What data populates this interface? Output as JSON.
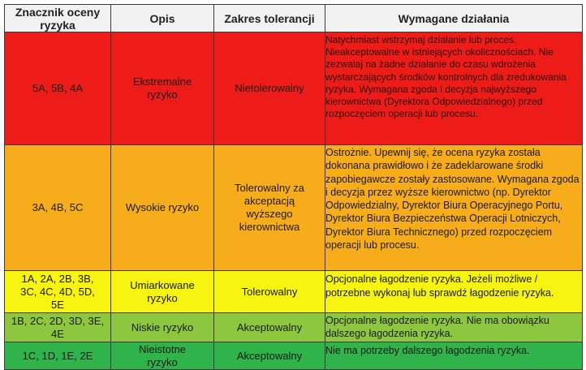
{
  "table": {
    "headers": {
      "rating": "Znacznik oceny ryzyka",
      "description": "Opis",
      "tolerance": "Zakres tolerancji",
      "actions": "Wymagane działania"
    },
    "rows": [
      {
        "id": "extreme",
        "color": "#ee1c18",
        "rating": "5A, 5B, 4A",
        "description": "Ekstremalne ryzyko",
        "tolerance": "Nietolerowalny",
        "actions": "Natychmiast wstrzymaj działanie lub proces. Nieakceptowalne w istniejących okolicznościach. Nie zezwalaj na żadne działanie do czasu wdrożenia wystarczających środków kontrolnych dla zredukowania ryzyka. Wymagana zgoda i decyzja najwyższego kierownictwa (Dyrektora Odpowiedzialnego) przed rozpoczęciem operacji lub procesu."
      },
      {
        "id": "high",
        "color": "#f7ac1b",
        "rating": "3A, 4B, 5C",
        "description": "Wysokie ryzyko",
        "tolerance": "Tolerowalny za akceptacją wyższego kierownictwa",
        "actions": "Ostrożnie. Upewnij się, że ocena ryzyka została dokonana prawidłowo i że zadeklarowane środki zapobiegawcze zostały zastosowane. Wymagana zgoda i decyzja przez wyższe kierownictwo (np. Dyrektor Odpowiedzialny, Dyrektor Biura Operacyjnego Portu, Dyrektor Biura Bezpieczeństwa Operacji Lotniczych, Dyrektor Biura Technicznego) przed rozpoczęciem operacji lub procesu."
      },
      {
        "id": "moderate",
        "color": "#f6f410",
        "rating": "1A, 2A, 2B, 3B, 3C, 4C, 4D, 5D, 5E",
        "description": "Umiarkowane ryzyko",
        "tolerance": "Tolerowalny",
        "actions": "Opcjonalne łagodzenie ryzyka. Jeżeli możliwe / potrzebne wykonaj lub sprawdź łagodzenie ryzyka."
      },
      {
        "id": "low",
        "color": "#8dc63f",
        "rating": "1B, 2C, 2D, 3D, 3E, 4E",
        "description": "Niskie ryzyko",
        "tolerance": "Akceptowalny",
        "actions": "Opcjonalne łagodzenie ryzyka. Nie ma obowiązku dalszego łagodzenia ryzyka."
      },
      {
        "id": "negligible",
        "color": "#2fb34a",
        "rating": "1C, 1D, 1E, 2E",
        "description": "Nieistotne ryzyko",
        "tolerance": "Akceptowalny",
        "actions": "Nie ma potrzeby dalszego łagodzenia ryzyka."
      }
    ]
  }
}
